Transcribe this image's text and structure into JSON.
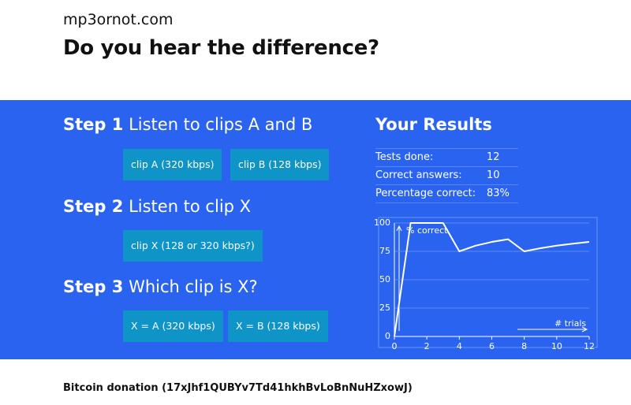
{
  "header": {
    "site": "mp3ornot.com",
    "title": "Do you hear the difference?"
  },
  "steps": [
    {
      "label": "Step 1",
      "text": "Listen to clips A and B",
      "buttons": [
        "clip A (320 kbps)",
        "clip B (128 kbps)"
      ]
    },
    {
      "label": "Step 2",
      "text": "Listen to clip X",
      "buttons": [
        "clip X (128 or 320 kbps?)"
      ]
    },
    {
      "label": "Step 3",
      "text": "Which clip is X?",
      "buttons": [
        "X = A (320 kbps)",
        "X = B (128 kbps)"
      ]
    }
  ],
  "results": {
    "title": "Your Results",
    "rows": [
      [
        "Tests done:",
        "12"
      ],
      [
        "Correct answers:",
        "10"
      ],
      [
        "Percentage correct:",
        "83%"
      ]
    ]
  },
  "chart_data": {
    "type": "line",
    "x": [
      0,
      1,
      2,
      3,
      4,
      5,
      6,
      7,
      8,
      9,
      10,
      11,
      12
    ],
    "values": [
      0,
      100,
      100,
      100,
      75,
      80,
      83.3,
      85.7,
      75,
      77.8,
      80,
      81.8,
      83.3
    ],
    "color": "#ffffff",
    "xlabel": "# trials",
    "ylabel": "% correct",
    "xlim": [
      0,
      12
    ],
    "ylim": [
      0,
      100
    ],
    "xticks": [
      0,
      2,
      4,
      6,
      8,
      10,
      12
    ],
    "yticks": [
      0,
      25,
      50,
      75,
      100
    ],
    "grid": true
  },
  "footer": "Bitcoin donation (17xJhf1QUBYv7Td41hkhBvLoBnNuHZxowJ)"
}
